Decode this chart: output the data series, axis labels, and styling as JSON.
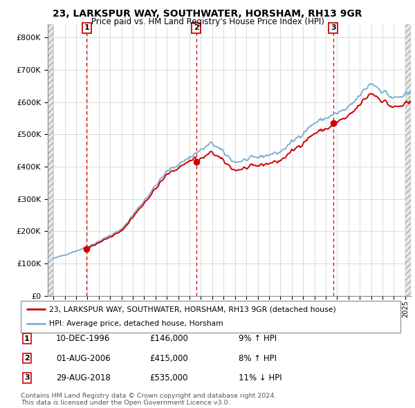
{
  "title": "23, LARKSPUR WAY, SOUTHWATER, HORSHAM, RH13 9GR",
  "subtitle": "Price paid vs. HM Land Registry's House Price Index (HPI)",
  "purchases": [
    {
      "date_num": 1996.94,
      "price": 146000,
      "label": "1"
    },
    {
      "date_num": 2006.58,
      "price": 415000,
      "label": "2"
    },
    {
      "date_num": 2018.66,
      "price": 535000,
      "label": "3"
    }
  ],
  "legend_line1": "23, LARKSPUR WAY, SOUTHWATER, HORSHAM, RH13 9GR (detached house)",
  "legend_line2": "HPI: Average price, detached house, Horsham",
  "table": [
    {
      "num": "1",
      "date": "10-DEC-1996",
      "price": "£146,000",
      "hpi": "9% ↑ HPI"
    },
    {
      "num": "2",
      "date": "01-AUG-2006",
      "price": "£415,000",
      "hpi": "8% ↑ HPI"
    },
    {
      "num": "3",
      "date": "29-AUG-2018",
      "price": "£535,000",
      "hpi": "11% ↓ HPI"
    }
  ],
  "footer": "Contains HM Land Registry data © Crown copyright and database right 2024.\nThis data is licensed under the Open Government Licence v3.0.",
  "red_color": "#cc0000",
  "blue_color": "#7ab0d4",
  "xmin": 1993.5,
  "xmax": 2025.5,
  "ymin": 0,
  "ymax": 840000,
  "yticks": [
    0,
    100000,
    200000,
    300000,
    400000,
    500000,
    600000,
    700000,
    800000
  ]
}
